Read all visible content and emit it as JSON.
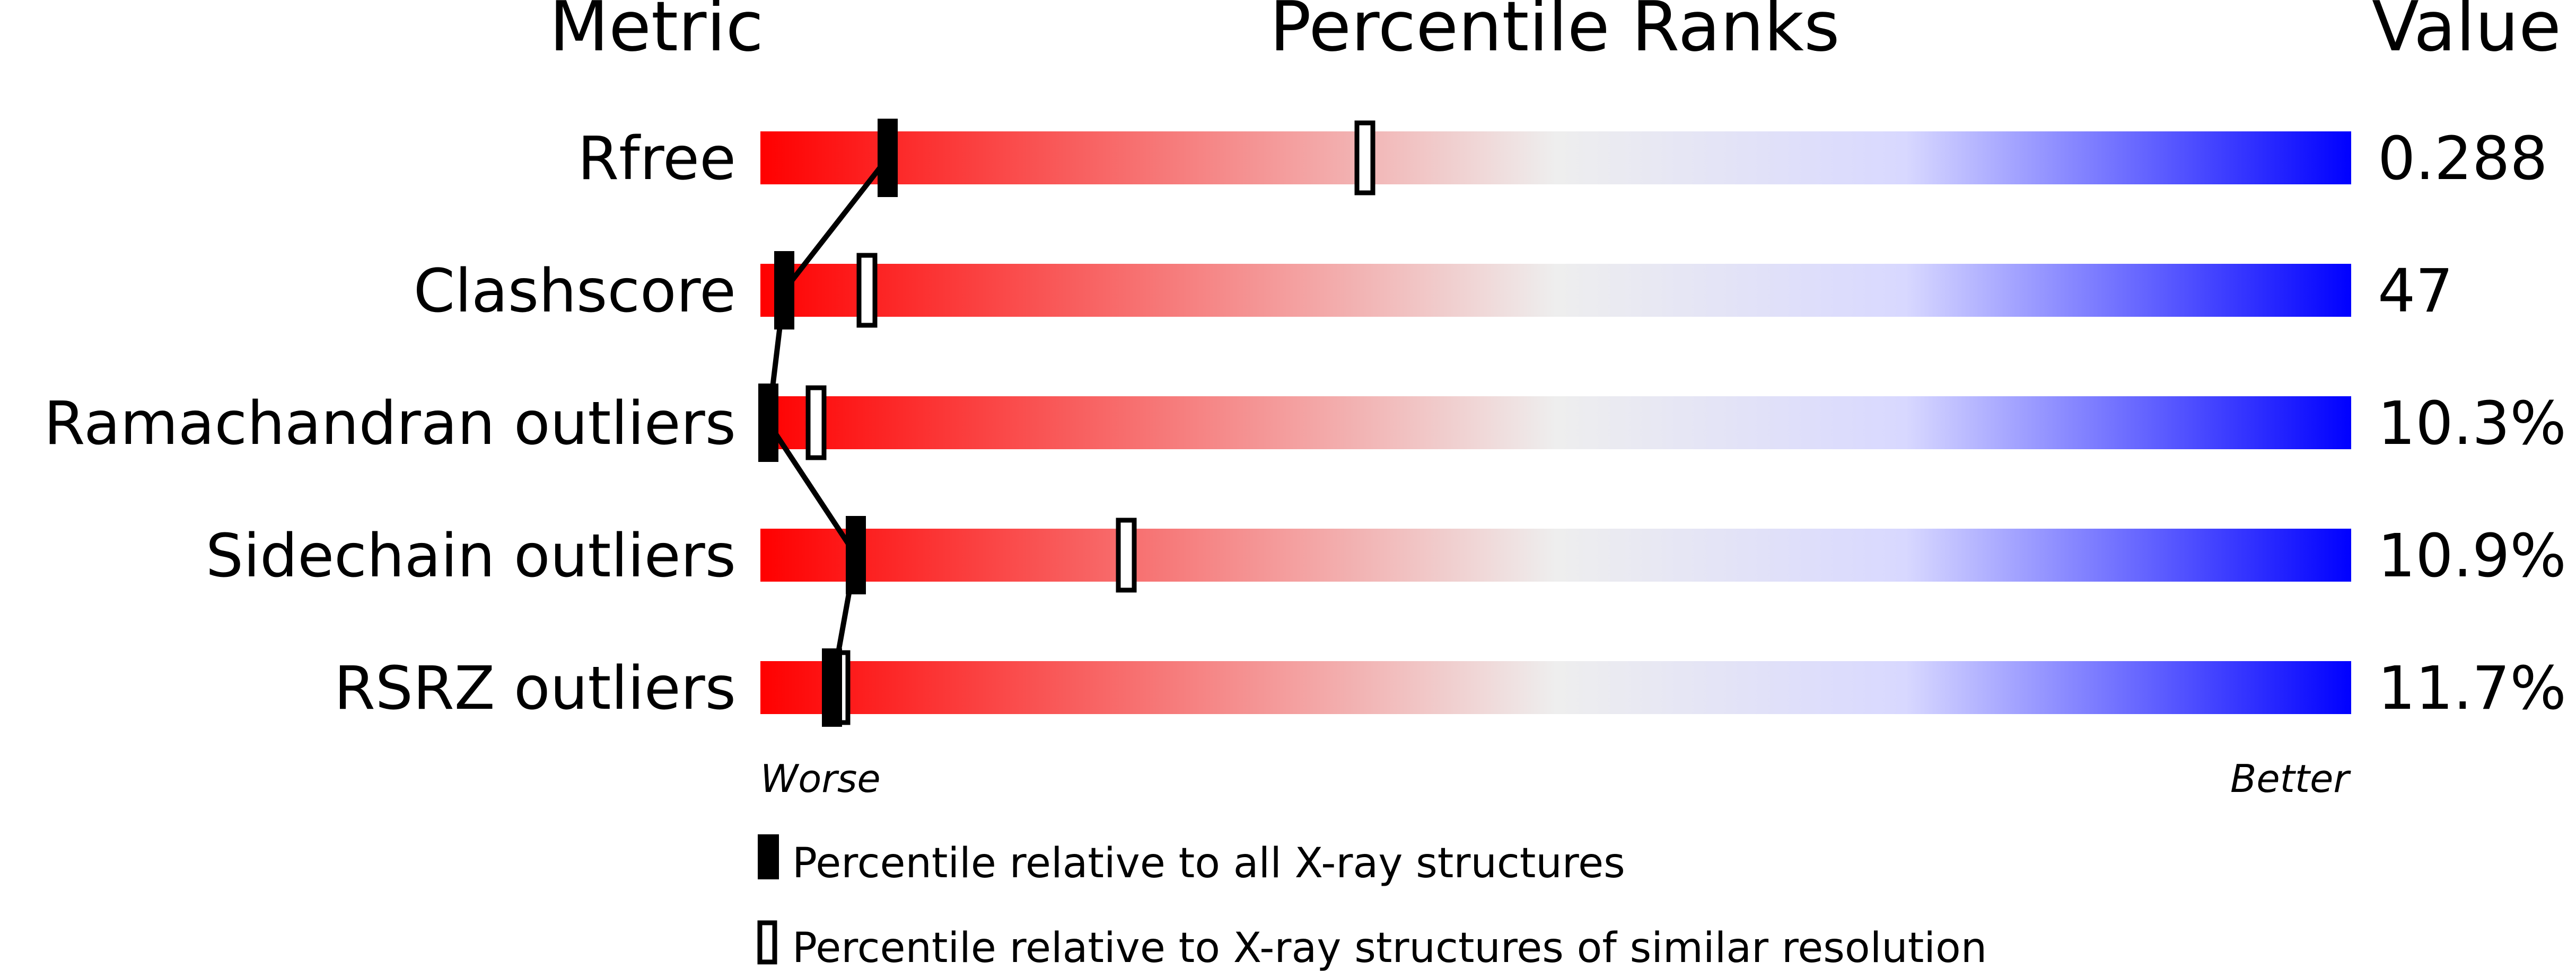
{
  "colors": {
    "worse": "#ff0000",
    "mid": "#eeeeee",
    "better": "#0000ff",
    "marker": "#000000"
  },
  "chart_data": {
    "type": "percentile-rank-slider",
    "headers": {
      "metric": "Metric",
      "ranks": "Percentile Ranks",
      "value": "Value"
    },
    "axis": {
      "min_label": "Worse",
      "max_label": "Better",
      "range": [
        0,
        100
      ]
    },
    "metrics": [
      {
        "label": "Rfree",
        "value": "0.288",
        "pct_all": 8,
        "pct_similar": 38
      },
      {
        "label": "Clashscore",
        "value": "47",
        "pct_all": 1.5,
        "pct_similar": 6.7
      },
      {
        "label": "Ramachandran outliers",
        "value": "10.3%",
        "pct_all": 0.5,
        "pct_similar": 3.5
      },
      {
        "label": "Sidechain outliers",
        "value": "10.9%",
        "pct_all": 6,
        "pct_similar": 23
      },
      {
        "label": "RSRZ outliers",
        "value": "11.7%",
        "pct_all": 4.5,
        "pct_similar": 5
      }
    ],
    "legend": [
      {
        "marker": "filled",
        "text": "Percentile relative to all X-ray structures"
      },
      {
        "marker": "open",
        "text": "Percentile relative to X-ray structures of similar resolution"
      }
    ]
  }
}
